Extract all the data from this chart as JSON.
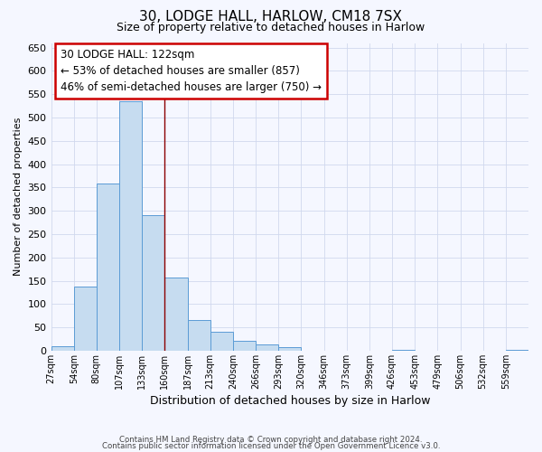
{
  "title": "30, LODGE HALL, HARLOW, CM18 7SX",
  "subtitle": "Size of property relative to detached houses in Harlow",
  "xlabel": "Distribution of detached houses by size in Harlow",
  "ylabel": "Number of detached properties",
  "bin_labels": [
    "27sqm",
    "54sqm",
    "80sqm",
    "107sqm",
    "133sqm",
    "160sqm",
    "187sqm",
    "213sqm",
    "240sqm",
    "266sqm",
    "293sqm",
    "320sqm",
    "346sqm",
    "373sqm",
    "399sqm",
    "426sqm",
    "453sqm",
    "479sqm",
    "506sqm",
    "532sqm",
    "559sqm"
  ],
  "bar_values": [
    10,
    137,
    358,
    535,
    290,
    157,
    66,
    40,
    22,
    14,
    7,
    0,
    0,
    0,
    0,
    1,
    0,
    0,
    0,
    0,
    1
  ],
  "bar_color": "#c6dcf0",
  "bar_edge_color": "#5b9bd5",
  "vline_x_index": 4,
  "vline_color": "#8b0000",
  "annotation_text": "30 LODGE HALL: 122sqm\n← 53% of detached houses are smaller (857)\n46% of semi-detached houses are larger (750) →",
  "annotation_box_color": "white",
  "annotation_box_edge_color": "#cc0000",
  "ylim": [
    0,
    660
  ],
  "yticks": [
    0,
    50,
    100,
    150,
    200,
    250,
    300,
    350,
    400,
    450,
    500,
    550,
    600,
    650
  ],
  "footer1": "Contains HM Land Registry data © Crown copyright and database right 2024.",
  "footer2": "Contains public sector information licensed under the Open Government Licence v3.0.",
  "bg_color": "#f5f7ff",
  "grid_color": "#d0d8ee",
  "title_fontsize": 11,
  "subtitle_fontsize": 9
}
